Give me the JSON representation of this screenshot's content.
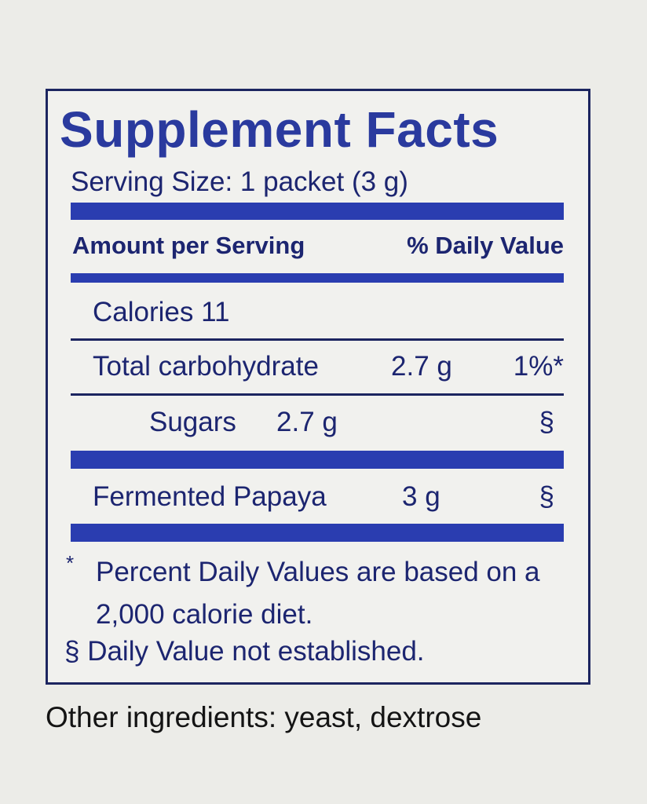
{
  "label": {
    "title": "Supplement Facts",
    "serving_size": "Serving Size: 1 packet (3 g)",
    "header": {
      "amount": "Amount per Serving",
      "daily_value": "% Daily Value"
    },
    "calories": "Calories 11",
    "rows": [
      {
        "name": "Total carbohydrate",
        "amount": "2.7 g",
        "daily_value": "1%*"
      },
      {
        "name": "Sugars",
        "amount": "2.7 g",
        "daily_value": "§"
      },
      {
        "name": "Fermented Papaya",
        "amount": "3 g",
        "daily_value": "§"
      }
    ],
    "footnotes": [
      {
        "marker": "*",
        "text": "Percent Daily Values are based on a 2,000 calorie diet."
      },
      {
        "text": "§ Daily Value not established."
      }
    ],
    "other_ingredients": "Other ingredients: yeast, dextrose"
  }
}
